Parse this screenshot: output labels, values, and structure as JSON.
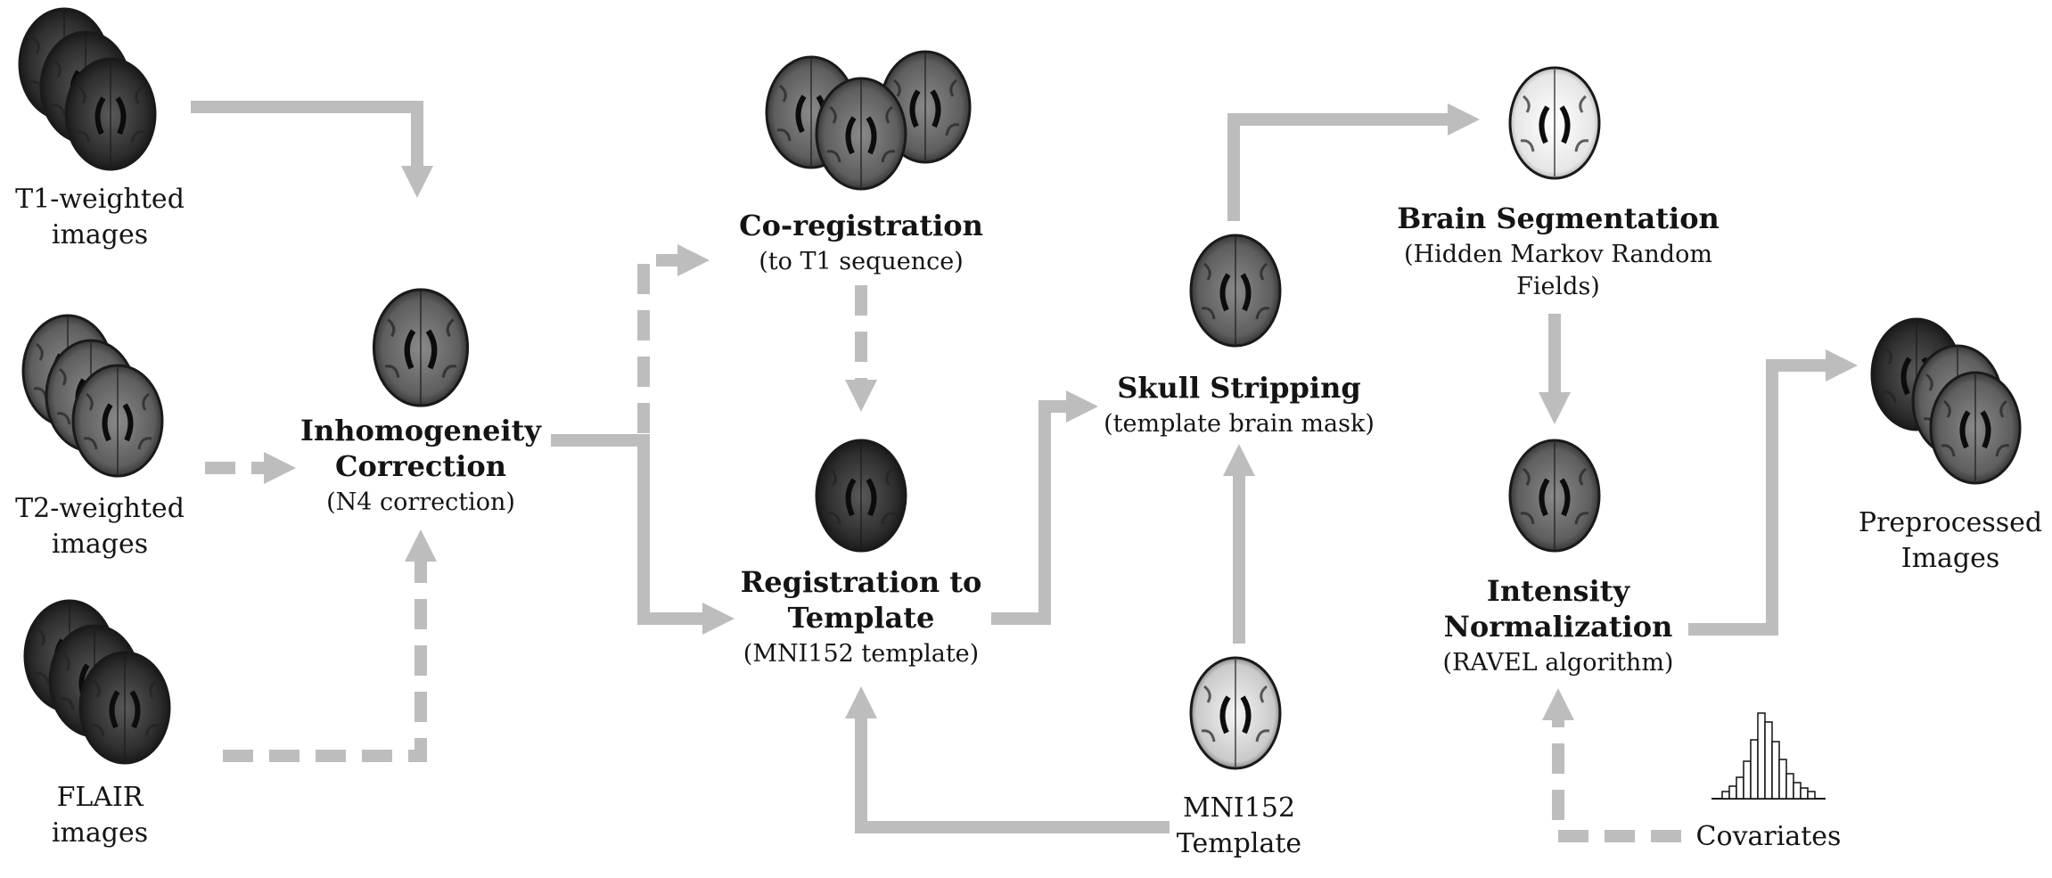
{
  "colors": {
    "arrow": "#bdbdbd",
    "text": "#141414",
    "brain_dark": "#2a2a2a",
    "brain_mid": "#6a6a6a",
    "brain_light": "#d9d9d9"
  },
  "inputs": {
    "t1": [
      "T1-weighted",
      "images"
    ],
    "t2": [
      "T2-weighted",
      "images"
    ],
    "flair": [
      "FLAIR",
      "images"
    ]
  },
  "steps": {
    "inhomogeneity": {
      "title": [
        "Inhomogeneity",
        "Correction"
      ],
      "subtitle": "(N4 correction)"
    },
    "coregistration": {
      "title": [
        "Co-registration"
      ],
      "subtitle": "(to T1 sequence)"
    },
    "registration": {
      "title": [
        "Registration to",
        "Template"
      ],
      "subtitle": "(MNI152 template)"
    },
    "skull": {
      "title": [
        "Skull Stripping"
      ],
      "subtitle": "(template brain mask)"
    },
    "segmentation": {
      "title": [
        "Brain Segmentation"
      ],
      "subtitle": "(Hidden Markov Random",
      "subtitle2": "Fields)"
    },
    "normalization": {
      "title": [
        "Intensity",
        "Normalization"
      ],
      "subtitle": "(RAVEL algorithm)"
    }
  },
  "template": [
    "MNI152",
    "Template"
  ],
  "covariates": "Covariates",
  "output": [
    "Preprocessed",
    "Images"
  ],
  "icons": [
    "brain-slice-icon",
    "histogram-icon"
  ]
}
